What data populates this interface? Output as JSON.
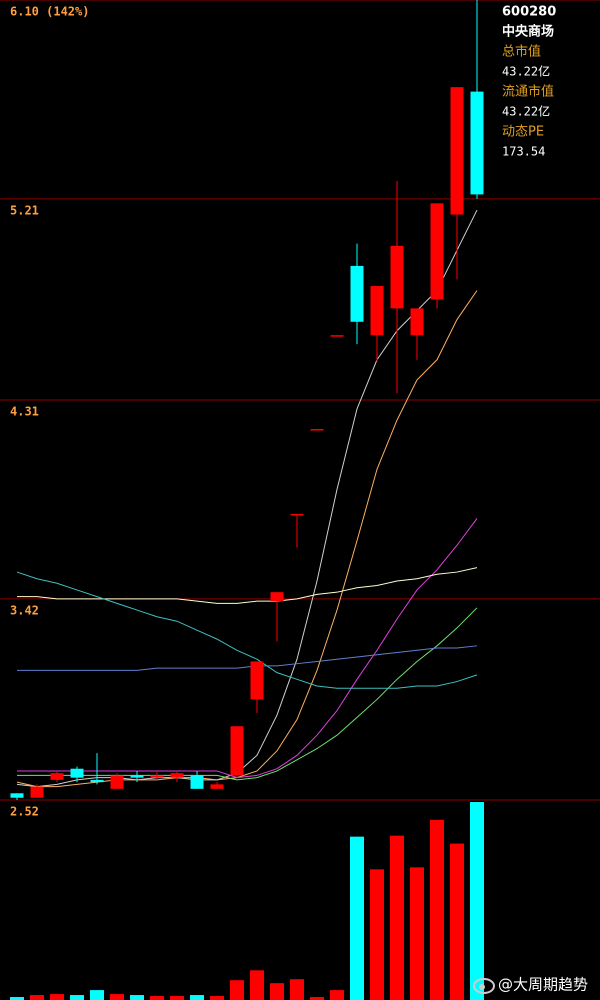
{
  "chart_data": {
    "type": "candlestick",
    "ylim": [
      2.52,
      6.1
    ],
    "yticks": [
      {
        "value": 6.1,
        "label": "6.10 (142%)"
      },
      5.21,
      4.31,
      3.42,
      2.52
    ],
    "grid": true,
    "grid_color": "#8b0000",
    "up_color": "#ff0000",
    "down_color": "#00ffff",
    "open": [
      2.55,
      2.53,
      2.61,
      2.66,
      2.61,
      2.57,
      2.63,
      2.62,
      2.62,
      2.63,
      2.57,
      2.63,
      2.97,
      3.41,
      3.8,
      4.18,
      4.6,
      4.91,
      4.6,
      4.72,
      4.6,
      4.76,
      5.14,
      5.69
    ],
    "high": [
      2.55,
      2.59,
      2.65,
      2.67,
      2.73,
      2.64,
      2.65,
      2.65,
      2.65,
      2.65,
      2.6,
      2.85,
      3.14,
      3.45,
      3.8,
      4.18,
      4.6,
      5.01,
      4.82,
      5.29,
      4.72,
      5.19,
      5.71,
      6.1
    ],
    "low": [
      2.52,
      2.53,
      2.6,
      2.6,
      2.59,
      2.57,
      2.6,
      2.61,
      2.6,
      2.57,
      2.57,
      2.62,
      2.91,
      3.23,
      3.65,
      4.18,
      4.6,
      4.56,
      4.48,
      4.34,
      4.49,
      4.72,
      4.85,
      5.21
    ],
    "close": [
      2.53,
      2.58,
      2.64,
      2.62,
      2.6,
      2.63,
      2.62,
      2.63,
      2.64,
      2.57,
      2.59,
      2.85,
      3.14,
      3.45,
      3.8,
      4.18,
      4.6,
      4.66,
      4.82,
      5.0,
      4.72,
      5.19,
      5.71,
      5.23
    ],
    "volume": [
      3,
      5,
      6,
      5,
      10,
      6,
      5,
      4,
      4,
      5,
      4,
      20,
      30,
      17,
      21,
      3,
      10,
      165,
      132,
      166,
      134,
      182,
      158,
      200
    ],
    "series": [
      {
        "color": "#d0d0d0",
        "values": [
          2.59,
          2.58,
          2.59,
          2.61,
          2.62,
          2.62,
          2.61,
          2.62,
          2.62,
          2.61,
          2.61,
          2.64,
          2.72,
          2.9,
          3.15,
          3.5,
          3.91,
          4.27,
          4.49,
          4.62,
          4.71,
          4.8,
          4.98,
          5.16
        ]
      },
      {
        "color": "#ffb060",
        "values": [
          2.6,
          2.58,
          2.58,
          2.59,
          2.6,
          2.61,
          2.61,
          2.61,
          2.62,
          2.62,
          2.61,
          2.62,
          2.65,
          2.74,
          2.88,
          3.1,
          3.37,
          3.68,
          4.0,
          4.22,
          4.4,
          4.49,
          4.67,
          4.8
        ]
      },
      {
        "color": "#e040e0",
        "values": [
          2.65,
          2.65,
          2.65,
          2.65,
          2.65,
          2.65,
          2.65,
          2.65,
          2.65,
          2.65,
          2.65,
          2.62,
          2.63,
          2.66,
          2.72,
          2.81,
          2.92,
          3.06,
          3.19,
          3.33,
          3.46,
          3.55,
          3.66,
          3.78
        ]
      },
      {
        "color": "#70e070",
        "values": [
          2.63,
          2.63,
          2.63,
          2.63,
          2.63,
          2.63,
          2.63,
          2.63,
          2.63,
          2.63,
          2.63,
          2.61,
          2.62,
          2.65,
          2.7,
          2.75,
          2.81,
          2.89,
          2.97,
          3.06,
          3.14,
          3.21,
          3.29,
          3.38
        ]
      },
      {
        "color": "#ffffd0",
        "values": [
          3.43,
          3.43,
          3.42,
          3.42,
          3.42,
          3.42,
          3.42,
          3.42,
          3.42,
          3.41,
          3.4,
          3.4,
          3.41,
          3.41,
          3.42,
          3.44,
          3.45,
          3.47,
          3.48,
          3.5,
          3.51,
          3.53,
          3.54,
          3.56
        ]
      },
      {
        "color": "#40c0c0",
        "values": [
          3.54,
          3.51,
          3.49,
          3.46,
          3.43,
          3.4,
          3.37,
          3.34,
          3.32,
          3.28,
          3.24,
          3.19,
          3.15,
          3.09,
          3.06,
          3.03,
          3.02,
          3.02,
          3.02,
          3.02,
          3.03,
          3.03,
          3.05,
          3.08
        ]
      },
      {
        "color": "#6080d0",
        "values": [
          3.1,
          3.1,
          3.1,
          3.1,
          3.1,
          3.1,
          3.1,
          3.11,
          3.11,
          3.11,
          3.11,
          3.11,
          3.12,
          3.12,
          3.13,
          3.14,
          3.15,
          3.16,
          3.17,
          3.18,
          3.19,
          3.2,
          3.2,
          3.21
        ]
      }
    ]
  },
  "info": {
    "code": "600280",
    "name": "中央商场",
    "fields": [
      {
        "label": "总市值",
        "value": "43.22亿"
      },
      {
        "label": "流通市值",
        "value": "43.22亿"
      },
      {
        "label": "动态PE",
        "value": "173.54"
      }
    ]
  },
  "watermark": "@大周期趋势"
}
